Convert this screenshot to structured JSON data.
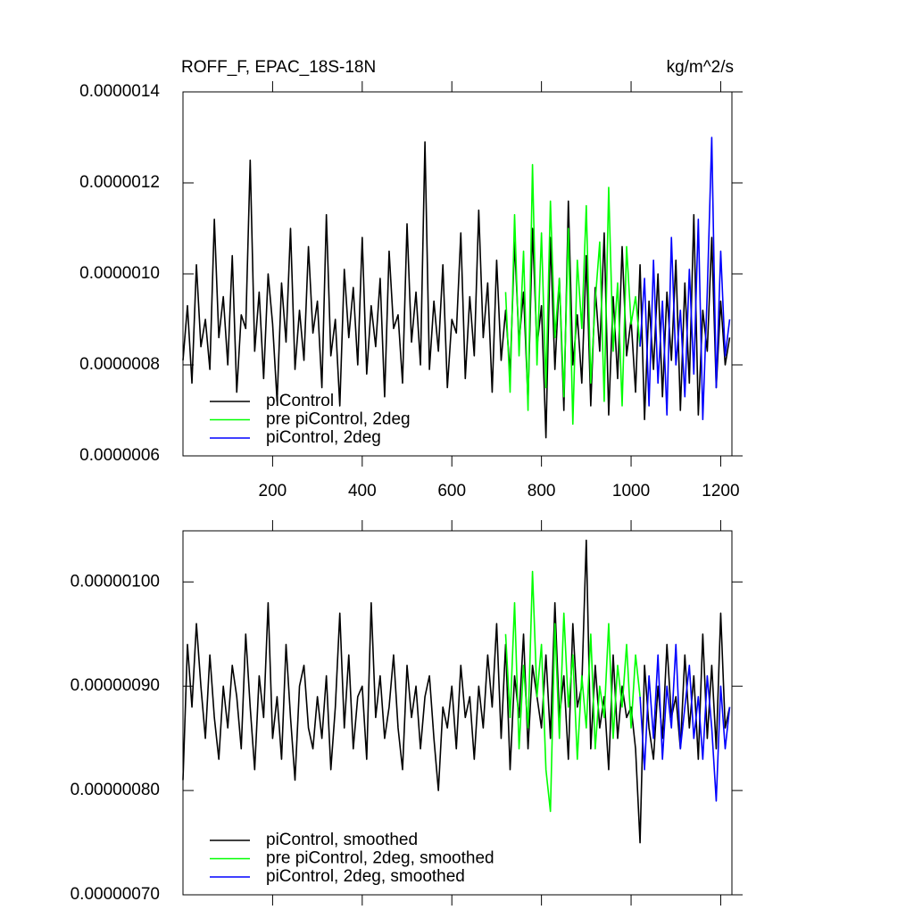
{
  "chart_data": [
    {
      "type": "line",
      "title": "ROFF_F, EPAC_18S-18N",
      "units": "kg/m^2/s",
      "legend": "lower left",
      "xlim": [
        0,
        1225
      ],
      "xticks": [
        200,
        400,
        600,
        800,
        1000,
        1200
      ],
      "show_xtick_labels": true,
      "ylim": [
        6e-07,
        1.4e-06
      ],
      "yticks": [
        {
          "value": 6e-07,
          "label": "0.0000006"
        },
        {
          "value": 8e-07,
          "label": "0.0000008"
        },
        {
          "value": 1e-06,
          "label": "0.0000010"
        },
        {
          "value": 1.2e-06,
          "label": "0.0000012"
        },
        {
          "value": 1.4e-06,
          "label": "0.0000014"
        }
      ],
      "x": [
        0,
        10,
        20,
        30,
        40,
        50,
        60,
        70,
        80,
        90,
        100,
        110,
        120,
        130,
        140,
        150,
        160,
        170,
        180,
        190,
        200,
        210,
        220,
        230,
        240,
        250,
        260,
        270,
        280,
        290,
        300,
        310,
        320,
        330,
        340,
        350,
        360,
        370,
        380,
        390,
        400,
        410,
        420,
        430,
        440,
        450,
        460,
        470,
        480,
        490,
        500,
        510,
        520,
        530,
        540,
        550,
        560,
        570,
        580,
        590,
        600,
        610,
        620,
        630,
        640,
        650,
        660,
        670,
        680,
        690,
        700,
        710,
        720,
        730,
        740,
        750,
        760,
        770,
        780,
        790,
        800,
        810,
        820,
        830,
        840,
        850,
        860,
        870,
        880,
        890,
        900,
        910,
        920,
        930,
        940,
        950,
        960,
        970,
        980,
        990,
        1000,
        1010,
        1020,
        1030,
        1040,
        1050,
        1060,
        1070,
        1080,
        1090,
        1100,
        1110,
        1120,
        1130,
        1140,
        1150,
        1160,
        1170,
        1180,
        1190,
        1200,
        1210,
        1220
      ],
      "series": [
        {
          "name": "piControl",
          "color": "#000000",
          "values": [
            8.1e-07,
            9.3e-07,
            7.6e-07,
            1.02e-06,
            8.4e-07,
            9e-07,
            7.9e-07,
            1.12e-06,
            8.6e-07,
            9.5e-07,
            8e-07,
            1.04e-06,
            7.4e-07,
            9.1e-07,
            8.8e-07,
            1.25e-06,
            8.3e-07,
            9.6e-07,
            7.7e-07,
            1e-06,
            8.9e-07,
            7.2e-07,
            9.8e-07,
            8.5e-07,
            1.1e-06,
            7.9e-07,
            9.2e-07,
            8.1e-07,
            1.06e-06,
            8.7e-07,
            9.4e-07,
            7.5e-07,
            1.13e-06,
            8.2e-07,
            9e-07,
            7.1e-07,
            1.01e-06,
            8.6e-07,
            9.7e-07,
            8e-07,
            1.08e-06,
            7.8e-07,
            9.3e-07,
            8.4e-07,
            9.9e-07,
            7.3e-07,
            1.05e-06,
            8.8e-07,
            9.1e-07,
            7.6e-07,
            1.11e-06,
            8.5e-07,
            9.6e-07,
            8e-07,
            1.29e-06,
            7.9e-07,
            9.4e-07,
            8.3e-07,
            1.02e-06,
            7.5e-07,
            9e-07,
            8.7e-07,
            1.09e-06,
            7.7e-07,
            9.5e-07,
            8.2e-07,
            1.14e-06,
            8.6e-07,
            9.8e-07,
            7.4e-07,
            1.03e-06,
            8.1e-07,
            9.2e-07,
            7.8e-07,
            1.07e-06,
            8.5e-07,
            9.6e-07,
            7.2e-07,
            1.1e-06,
            8.4e-07,
            9.3e-07,
            6.4e-07,
            1.08e-06,
            7.9e-07,
            9.9e-07,
            7e-07,
            1.16e-06,
            8e-07,
            9.1e-07,
            7.6e-07,
            1.04e-06,
            7.1e-07,
            9.7e-07,
            8.3e-07,
            1.09e-06,
            6.9e-07,
            9.5e-07,
            7.7e-07,
            1.06e-06,
            8.2e-07,
            9e-07,
            7.4e-07,
            1.02e-06,
            6.8e-07,
            9.4e-07,
            7.9e-07,
            1e-06,
            7.3e-07,
            9.6e-07,
            8.1e-07,
            1.03e-06,
            7e-07,
            9.8e-07,
            7.6e-07,
            1.13e-06,
            6.9e-07,
            9.2e-07,
            8.3e-07,
            1.08e-06,
            7.5e-07,
            9.4e-07,
            8e-07,
            8.6e-07
          ]
        },
        {
          "name": "pre piControl, 2deg",
          "color": "#00ff00",
          "values": [
            null,
            null,
            null,
            null,
            null,
            null,
            null,
            null,
            null,
            null,
            null,
            null,
            null,
            null,
            null,
            null,
            null,
            null,
            null,
            null,
            null,
            null,
            null,
            null,
            null,
            null,
            null,
            null,
            null,
            null,
            null,
            null,
            null,
            null,
            null,
            null,
            null,
            null,
            null,
            null,
            null,
            null,
            null,
            null,
            null,
            null,
            null,
            null,
            null,
            null,
            null,
            null,
            null,
            null,
            null,
            null,
            null,
            null,
            null,
            null,
            null,
            null,
            null,
            null,
            null,
            null,
            null,
            null,
            null,
            null,
            null,
            null,
            9.6e-07,
            7.4e-07,
            1.13e-06,
            8.2e-07,
            1.05e-06,
            7e-07,
            1.24e-06,
            8e-07,
            1.09e-06,
            7.5e-07,
            1.16e-06,
            8.6e-07,
            9.9e-07,
            7.3e-07,
            1.1e-06,
            6.7e-07,
            1.03e-06,
            8.8e-07,
            1.15e-06,
            7.6e-07,
            9.4e-07,
            1.07e-06,
            7.2e-07,
            1.19e-06,
            8.3e-07,
            9.8e-07,
            7.1e-07,
            1.06e-06,
            8.9e-07,
            9.5e-07,
            8.4e-07,
            null,
            null,
            null,
            null,
            null,
            null,
            null,
            null,
            null,
            null,
            null,
            null,
            null,
            null,
            null,
            null,
            null,
            null,
            null,
            null
          ]
        },
        {
          "name": "piControl, 2deg",
          "color": "#0000ff",
          "values": [
            null,
            null,
            null,
            null,
            null,
            null,
            null,
            null,
            null,
            null,
            null,
            null,
            null,
            null,
            null,
            null,
            null,
            null,
            null,
            null,
            null,
            null,
            null,
            null,
            null,
            null,
            null,
            null,
            null,
            null,
            null,
            null,
            null,
            null,
            null,
            null,
            null,
            null,
            null,
            null,
            null,
            null,
            null,
            null,
            null,
            null,
            null,
            null,
            null,
            null,
            null,
            null,
            null,
            null,
            null,
            null,
            null,
            null,
            null,
            null,
            null,
            null,
            null,
            null,
            null,
            null,
            null,
            null,
            null,
            null,
            null,
            null,
            null,
            null,
            null,
            null,
            null,
            null,
            null,
            null,
            null,
            null,
            null,
            null,
            null,
            null,
            null,
            null,
            null,
            null,
            null,
            null,
            null,
            null,
            null,
            null,
            null,
            null,
            null,
            null,
            null,
            null,
            8.4e-07,
            9.9e-07,
            7.1e-07,
            1.03e-06,
            7.6e-07,
            9.4e-07,
            6.9e-07,
            1.08e-06,
            8e-07,
            9.2e-07,
            7.3e-07,
            1.01e-06,
            7.8e-07,
            1.12e-06,
            6.8e-07,
            9.6e-07,
            1.3e-06,
            7.5e-07,
            1.05e-06,
            8.2e-07,
            9e-07
          ]
        }
      ]
    },
    {
      "type": "line",
      "legend": "lower left",
      "xlim": [
        0,
        1225
      ],
      "xticks": [
        200,
        400,
        600,
        800,
        1000,
        1200
      ],
      "show_xtick_labels": false,
      "ylim": [
        7e-07,
        1.049e-06
      ],
      "yticks": [
        {
          "value": 7e-07,
          "label": "0.00000070"
        },
        {
          "value": 8e-07,
          "label": "0.00000080"
        },
        {
          "value": 9e-07,
          "label": "0.00000090"
        },
        {
          "value": 1e-06,
          "label": "0.00000100"
        }
      ],
      "x": [
        0,
        10,
        20,
        30,
        40,
        50,
        60,
        70,
        80,
        90,
        100,
        110,
        120,
        130,
        140,
        150,
        160,
        170,
        180,
        190,
        200,
        210,
        220,
        230,
        240,
        250,
        260,
        270,
        280,
        290,
        300,
        310,
        320,
        330,
        340,
        350,
        360,
        370,
        380,
        390,
        400,
        410,
        420,
        430,
        440,
        450,
        460,
        470,
        480,
        490,
        500,
        510,
        520,
        530,
        540,
        550,
        560,
        570,
        580,
        590,
        600,
        610,
        620,
        630,
        640,
        650,
        660,
        670,
        680,
        690,
        700,
        710,
        720,
        730,
        740,
        750,
        760,
        770,
        780,
        790,
        800,
        810,
        820,
        830,
        840,
        850,
        860,
        870,
        880,
        890,
        900,
        910,
        920,
        930,
        940,
        950,
        960,
        970,
        980,
        990,
        1000,
        1010,
        1020,
        1030,
        1040,
        1050,
        1060,
        1070,
        1080,
        1090,
        1100,
        1110,
        1120,
        1130,
        1140,
        1150,
        1160,
        1170,
        1180,
        1190,
        1200,
        1210,
        1220
      ],
      "series": [
        {
          "name": "piControl, smoothed",
          "color": "#000000",
          "values": [
            8.1e-07,
            9.4e-07,
            8.8e-07,
            9.6e-07,
            9e-07,
            8.5e-07,
            9.3e-07,
            8.7e-07,
            8.3e-07,
            9e-07,
            8.6e-07,
            9.2e-07,
            8.9e-07,
            8.4e-07,
            9.5e-07,
            8.8e-07,
            8.2e-07,
            9.1e-07,
            8.7e-07,
            9.8e-07,
            8.5e-07,
            8.9e-07,
            8.3e-07,
            9.4e-07,
            8.7e-07,
            8.1e-07,
            9e-07,
            9.2e-07,
            8.6e-07,
            8.4e-07,
            8.9e-07,
            8.5e-07,
            9.1e-07,
            8.2e-07,
            8.8e-07,
            9.7e-07,
            8.6e-07,
            9.3e-07,
            8.4e-07,
            8.9e-07,
            9e-07,
            8.3e-07,
            9.8e-07,
            8.7e-07,
            9.1e-07,
            8.5e-07,
            8.8e-07,
            9.3e-07,
            8.6e-07,
            8.2e-07,
            9.2e-07,
            8.7e-07,
            9e-07,
            8.4e-07,
            8.9e-07,
            9.1e-07,
            8.5e-07,
            8e-07,
            8.8e-07,
            8.6e-07,
            9e-07,
            8.4e-07,
            9.2e-07,
            8.7e-07,
            8.9e-07,
            8.3e-07,
            9e-07,
            8.6e-07,
            9.3e-07,
            8.8e-07,
            9.6e-07,
            8.5e-07,
            9.4e-07,
            8.2e-07,
            9.1e-07,
            8.7e-07,
            9.5e-07,
            8.4e-07,
            9.2e-07,
            8.9e-07,
            8.6e-07,
            9.3e-07,
            8.5e-07,
            9.8e-07,
            8.7e-07,
            9.1e-07,
            8.3e-07,
            9.6e-07,
            8.8e-07,
            9e-07,
            1.04e-06,
            8.4e-07,
            9.2e-07,
            8.6e-07,
            8.9e-07,
            8.2e-07,
            9.3e-07,
            8.5e-07,
            9e-07,
            8.7e-07,
            8.8e-07,
            8.4e-07,
            7.5e-07,
            9.2e-07,
            8.6e-07,
            8.3e-07,
            9e-07,
            8.5e-07,
            9.4e-07,
            8.7e-07,
            8.9e-07,
            8.4e-07,
            9.3e-07,
            8.6e-07,
            9.1e-07,
            8.3e-07,
            9.5e-07,
            8.5e-07,
            9.2e-07,
            8.4e-07,
            9.7e-07,
            8.6e-07,
            8.8e-07
          ]
        },
        {
          "name": "pre piControl, 2deg, smoothed",
          "color": "#00ff00",
          "values": [
            null,
            null,
            null,
            null,
            null,
            null,
            null,
            null,
            null,
            null,
            null,
            null,
            null,
            null,
            null,
            null,
            null,
            null,
            null,
            null,
            null,
            null,
            null,
            null,
            null,
            null,
            null,
            null,
            null,
            null,
            null,
            null,
            null,
            null,
            null,
            null,
            null,
            null,
            null,
            null,
            null,
            null,
            null,
            null,
            null,
            null,
            null,
            null,
            null,
            null,
            null,
            null,
            null,
            null,
            null,
            null,
            null,
            null,
            null,
            null,
            null,
            null,
            null,
            null,
            null,
            null,
            null,
            null,
            null,
            null,
            null,
            null,
            9.5e-07,
            8.7e-07,
            9.8e-07,
            8.4e-07,
            9.2e-07,
            8.6e-07,
            1.01e-06,
            8.9e-07,
            9.4e-07,
            8.2e-07,
            7.8e-07,
            9.6e-07,
            8.5e-07,
            9.7e-07,
            8.8e-07,
            9.3e-07,
            8.3e-07,
            9.1e-07,
            8.6e-07,
            9.5e-07,
            8.4e-07,
            9e-07,
            8.7e-07,
            9.6e-07,
            8.5e-07,
            9.2e-07,
            8.8e-07,
            9.4e-07,
            8.6e-07,
            9.3e-07,
            8.9e-07,
            null,
            null,
            null,
            null,
            null,
            null,
            null,
            null,
            null,
            null,
            null,
            null,
            null,
            null,
            null,
            null,
            null,
            null,
            null,
            null
          ]
        },
        {
          "name": "piControl, 2deg, smoothed",
          "color": "#0000ff",
          "values": [
            null,
            null,
            null,
            null,
            null,
            null,
            null,
            null,
            null,
            null,
            null,
            null,
            null,
            null,
            null,
            null,
            null,
            null,
            null,
            null,
            null,
            null,
            null,
            null,
            null,
            null,
            null,
            null,
            null,
            null,
            null,
            null,
            null,
            null,
            null,
            null,
            null,
            null,
            null,
            null,
            null,
            null,
            null,
            null,
            null,
            null,
            null,
            null,
            null,
            null,
            null,
            null,
            null,
            null,
            null,
            null,
            null,
            null,
            null,
            null,
            null,
            null,
            null,
            null,
            null,
            null,
            null,
            null,
            null,
            null,
            null,
            null,
            null,
            null,
            null,
            null,
            null,
            null,
            null,
            null,
            null,
            null,
            null,
            null,
            null,
            null,
            null,
            null,
            null,
            null,
            null,
            null,
            null,
            null,
            null,
            null,
            null,
            null,
            null,
            null,
            null,
            null,
            8.9e-07,
            8.2e-07,
            9.1e-07,
            8.5e-07,
            9.3e-07,
            8.3e-07,
            9e-07,
            8.6e-07,
            9.4e-07,
            8.4e-07,
            8.8e-07,
            9.2e-07,
            8.5e-07,
            8.9e-07,
            8.3e-07,
            9.1e-07,
            8.6e-07,
            7.9e-07,
            9e-07,
            8.4e-07,
            8.8e-07
          ]
        }
      ]
    }
  ]
}
